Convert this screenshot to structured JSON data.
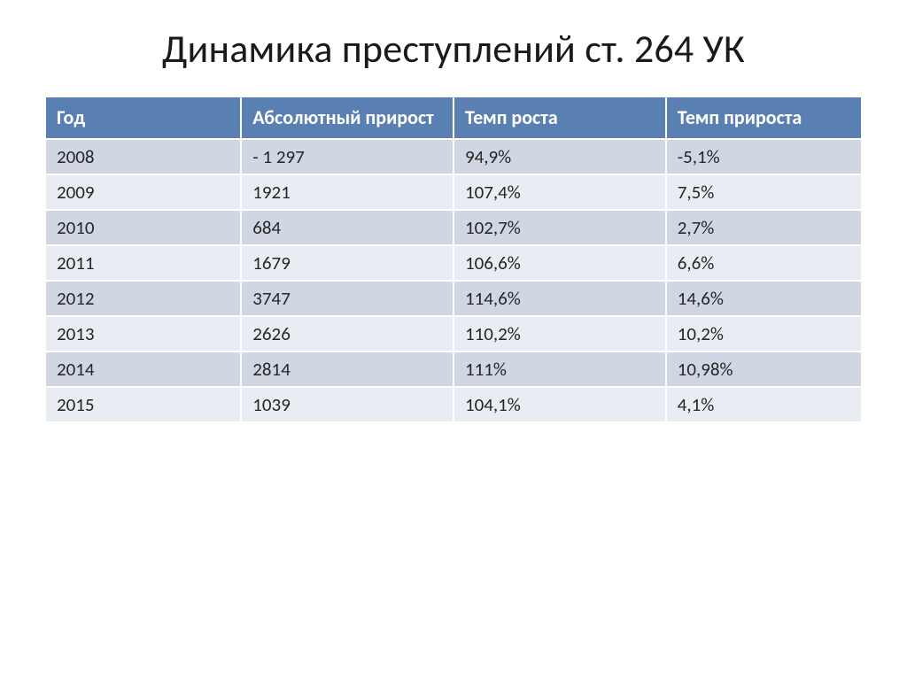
{
  "title": "Динамика преступлений ст. 264 УК",
  "table": {
    "type": "table",
    "header_bg": "#5a80b3",
    "header_fg": "#ffffff",
    "row_band_colors": [
      "#d1d7e2",
      "#e9ecf2"
    ],
    "cell_border_color": "#ffffff",
    "highlight_color": "#c0392b",
    "font_family": "Calibri",
    "header_fontsize_pt": 17,
    "body_fontsize_pt": 16,
    "columns": [
      {
        "key": "year",
        "label": "Год",
        "width_pct": 24,
        "align": "left"
      },
      {
        "key": "abs",
        "label": "Абсолютный прирост",
        "width_pct": 26,
        "align": "left"
      },
      {
        "key": "growth",
        "label": "Темп роста",
        "width_pct": 26,
        "align": "left"
      },
      {
        "key": "increase",
        "label": "Темп прироста",
        "width_pct": 24,
        "align": "left"
      }
    ],
    "rows": [
      {
        "year": "2008",
        "abs": "- 1 297",
        "growth": "94,9%",
        "increase": "-5,1%",
        "abs_highlight": false
      },
      {
        "year": "2009",
        "abs": "1921",
        "growth": "107,4%",
        "increase": "7,5%",
        "abs_highlight": false
      },
      {
        "year": "2010",
        "abs": "684",
        "growth": "102,7%",
        "increase": "2,7%",
        "abs_highlight": false
      },
      {
        "year": "2011",
        "abs": "1679",
        "growth": "106,6%",
        "increase": "6,6%",
        "abs_highlight": false
      },
      {
        "year": "2012",
        "abs": "3747",
        "growth": "114,6%",
        "increase": "14,6%",
        "abs_highlight": true
      },
      {
        "year": "2013",
        "abs": "2626",
        "growth": "110,2%",
        "increase": "10,2%",
        "abs_highlight": false
      },
      {
        "year": "2014",
        "abs": "2814",
        "growth": "111%",
        "increase": "10,98%",
        "abs_highlight": false
      },
      {
        "year": "2015",
        "abs": "1039",
        "growth": "104,1%",
        "increase": "4,1%",
        "abs_highlight": false
      }
    ]
  }
}
